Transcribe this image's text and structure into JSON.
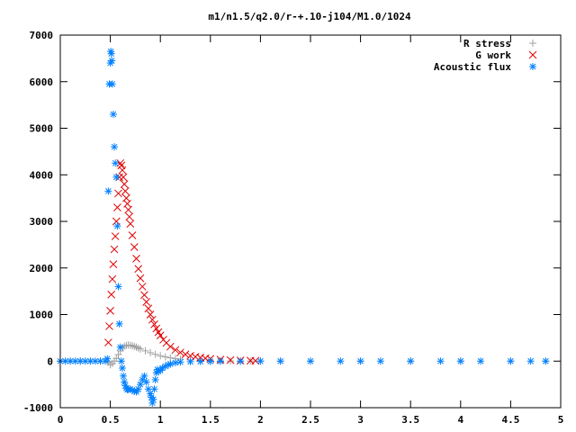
{
  "chart_data": {
    "type": "scatter",
    "title": "m1/n1.5/q2.0/r-+.10-j104/M1.0/1024",
    "xlabel": "",
    "ylabel": "",
    "xlim": [
      0,
      5
    ],
    "ylim": [
      -1000,
      7000
    ],
    "xticks": [
      {
        "value": 0,
        "label": "0"
      },
      {
        "value": 0.5,
        "label": "0.5"
      },
      {
        "value": 1,
        "label": "1"
      },
      {
        "value": 1.5,
        "label": "1.5"
      },
      {
        "value": 2,
        "label": "2"
      },
      {
        "value": 2.5,
        "label": "2.5"
      },
      {
        "value": 3,
        "label": "3"
      },
      {
        "value": 3.5,
        "label": "3.5"
      },
      {
        "value": 4,
        "label": "4"
      },
      {
        "value": 4.5,
        "label": "4.5"
      },
      {
        "value": 5,
        "label": "5"
      }
    ],
    "yticks": [
      {
        "value": -1000,
        "label": "-1000"
      },
      {
        "value": 0,
        "label": "0"
      },
      {
        "value": 1000,
        "label": "1000"
      },
      {
        "value": 2000,
        "label": "2000"
      },
      {
        "value": 3000,
        "label": "3000"
      },
      {
        "value": 4000,
        "label": "4000"
      },
      {
        "value": 5000,
        "label": "5000"
      },
      {
        "value": 6000,
        "label": "6000"
      },
      {
        "value": 7000,
        "label": "7000"
      }
    ],
    "grid": false,
    "legend_position": "top-right",
    "series": [
      {
        "name": "R stress",
        "marker": "plus",
        "color": "#a0a0a0",
        "x": [
          0,
          0.1,
          0.2,
          0.3,
          0.4,
          0.48,
          0.5,
          0.52,
          0.54,
          0.56,
          0.58,
          0.6,
          0.62,
          0.64,
          0.66,
          0.68,
          0.7,
          0.72,
          0.74,
          0.76,
          0.78,
          0.8,
          0.85,
          0.9,
          0.95,
          1.0,
          1.05,
          1.1,
          1.15,
          1.2,
          1.3,
          1.4,
          1.5,
          1.6,
          1.7,
          1.8,
          1.9,
          2.0,
          2.2,
          2.5,
          3.0,
          3.5,
          4.0,
          4.5,
          4.85
        ],
        "y": [
          0,
          0,
          0,
          0,
          0,
          -20,
          -80,
          -50,
          0,
          60,
          140,
          220,
          280,
          320,
          340,
          345,
          340,
          330,
          315,
          300,
          280,
          260,
          220,
          180,
          145,
          115,
          90,
          70,
          55,
          42,
          25,
          15,
          9,
          5,
          3,
          2,
          1,
          0,
          0,
          0,
          0,
          0,
          0,
          0,
          0
        ]
      },
      {
        "name": "G work",
        "marker": "cross",
        "color": "#e00000",
        "x": [
          0.48,
          0.49,
          0.5,
          0.51,
          0.52,
          0.53,
          0.54,
          0.55,
          0.56,
          0.57,
          0.58,
          0.59,
          0.6,
          0.61,
          0.62,
          0.63,
          0.64,
          0.65,
          0.66,
          0.67,
          0.68,
          0.69,
          0.7,
          0.72,
          0.74,
          0.76,
          0.78,
          0.8,
          0.82,
          0.84,
          0.86,
          0.88,
          0.9,
          0.92,
          0.94,
          0.96,
          0.98,
          1.0,
          1.03,
          1.06,
          1.1,
          1.15,
          1.2,
          1.25,
          1.3,
          1.35,
          1.4,
          1.45,
          1.5,
          1.6,
          1.7,
          1.8,
          1.9,
          1.95
        ],
        "y": [
          400,
          750,
          1080,
          1430,
          1760,
          2080,
          2400,
          2680,
          3000,
          3300,
          3600,
          3950,
          4250,
          4200,
          4100,
          3950,
          3800,
          3650,
          3500,
          3380,
          3250,
          3100,
          2950,
          2700,
          2450,
          2200,
          1980,
          1780,
          1600,
          1420,
          1270,
          1130,
          1000,
          890,
          790,
          700,
          620,
          550,
          460,
          390,
          310,
          240,
          185,
          145,
          115,
          92,
          75,
          60,
          48,
          32,
          22,
          15,
          10,
          8
        ]
      },
      {
        "name": "Acoustic flux",
        "marker": "star",
        "color": "#0080ff",
        "x": [
          0,
          0.05,
          0.1,
          0.15,
          0.2,
          0.25,
          0.3,
          0.35,
          0.4,
          0.45,
          0.47,
          0.48,
          0.49,
          0.5,
          0.505,
          0.51,
          0.515,
          0.52,
          0.53,
          0.54,
          0.55,
          0.56,
          0.57,
          0.58,
          0.59,
          0.6,
          0.61,
          0.62,
          0.63,
          0.64,
          0.65,
          0.66,
          0.67,
          0.68,
          0.7,
          0.72,
          0.74,
          0.76,
          0.78,
          0.8,
          0.82,
          0.84,
          0.86,
          0.88,
          0.9,
          0.91,
          0.92,
          0.93,
          0.94,
          0.95,
          0.96,
          0.97,
          0.98,
          1.0,
          1.02,
          1.05,
          1.08,
          1.1,
          1.15,
          1.2,
          1.3,
          1.4,
          1.5,
          1.6,
          1.8,
          2.0,
          2.2,
          2.5,
          2.8,
          3.0,
          3.2,
          3.5,
          3.8,
          4.0,
          4.2,
          4.5,
          4.7,
          4.85
        ],
        "y": [
          0,
          0,
          0,
          0,
          0,
          0,
          0,
          0,
          0,
          0,
          50,
          3650,
          5950,
          6400,
          6650,
          6600,
          6450,
          5950,
          5300,
          4600,
          4250,
          3950,
          2900,
          1600,
          800,
          300,
          0,
          -150,
          -320,
          -450,
          -530,
          -580,
          -610,
          -610,
          -600,
          -620,
          -650,
          -660,
          -600,
          -500,
          -400,
          -320,
          -450,
          -600,
          -700,
          -780,
          -900,
          -820,
          -600,
          -400,
          -250,
          -180,
          -220,
          -200,
          -150,
          -110,
          -80,
          -60,
          -35,
          -20,
          -12,
          -8,
          -5,
          -3,
          -2,
          0,
          0,
          0,
          0,
          0,
          0,
          0,
          0,
          0,
          0,
          0,
          0,
          0
        ]
      }
    ]
  }
}
